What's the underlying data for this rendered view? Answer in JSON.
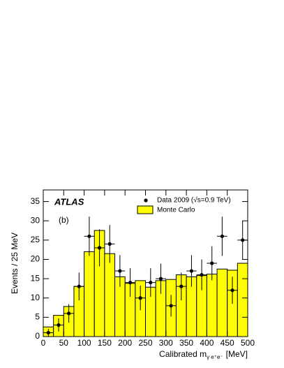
{
  "chart_data": {
    "type": "histogram",
    "annotation": "ATLAS",
    "panel_label": "(b)",
    "x_label": "Calibrated m",
    "x_label_subscript": "γ e⁺e⁻",
    "x_label_unit": "[MeV]",
    "y_label": "Events / 25 MeV",
    "bins": [
      0,
      25,
      50,
      75,
      100,
      125,
      150,
      175,
      200,
      225,
      250,
      275,
      300,
      325,
      350,
      375,
      400,
      425,
      450,
      475,
      500
    ],
    "series": [
      {
        "name": "Monte Carlo",
        "color": "#ffff00",
        "values": [
          2.5,
          5.5,
          7.8,
          13,
          22,
          27.5,
          21.5,
          15.5,
          13.8,
          14.5,
          12.8,
          14.5,
          14.8,
          16,
          15.5,
          15.8,
          16.2,
          17.5,
          17.2,
          19
        ]
      },
      {
        "name": "Data 2009 (√s=0.9 TeV)",
        "color": "#000000",
        "x": [
          12.5,
          37.5,
          62.5,
          87.5,
          112.5,
          137.5,
          162.5,
          187.5,
          212.5,
          237.5,
          262.5,
          287.5,
          312.5,
          337.5,
          362.5,
          387.5,
          412.5,
          437.5,
          462.5,
          487.5
        ],
        "values": [
          1,
          3,
          6,
          13,
          26,
          23,
          24,
          17,
          14,
          10,
          14,
          15,
          8,
          13,
          17,
          16,
          19,
          26,
          12,
          25
        ],
        "errors": [
          1,
          1.7,
          2.4,
          3.6,
          5.1,
          4.8,
          4.9,
          4.1,
          3.7,
          3.2,
          3.7,
          3.9,
          2.8,
          3.6,
          4.1,
          4,
          4.4,
          5.1,
          3.5,
          5
        ]
      }
    ],
    "xlim": [
      0,
      500
    ],
    "ylim": [
      0,
      38
    ],
    "xticks": [
      0,
      50,
      100,
      150,
      200,
      250,
      300,
      350,
      400,
      450,
      500
    ],
    "yticks": [
      0,
      5,
      10,
      15,
      20,
      25,
      30,
      35
    ],
    "legend": "top-right"
  }
}
